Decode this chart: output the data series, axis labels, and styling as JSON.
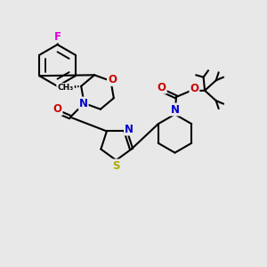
{
  "bg_color": "#e8e8e8",
  "atom_colors": {
    "C": "#000000",
    "N": "#0000cc",
    "O": "#cc0000",
    "S": "#aaaa00",
    "F": "#dd00dd"
  },
  "bond_color": "#000000",
  "bond_lw": 1.5,
  "font_size": 8.5
}
